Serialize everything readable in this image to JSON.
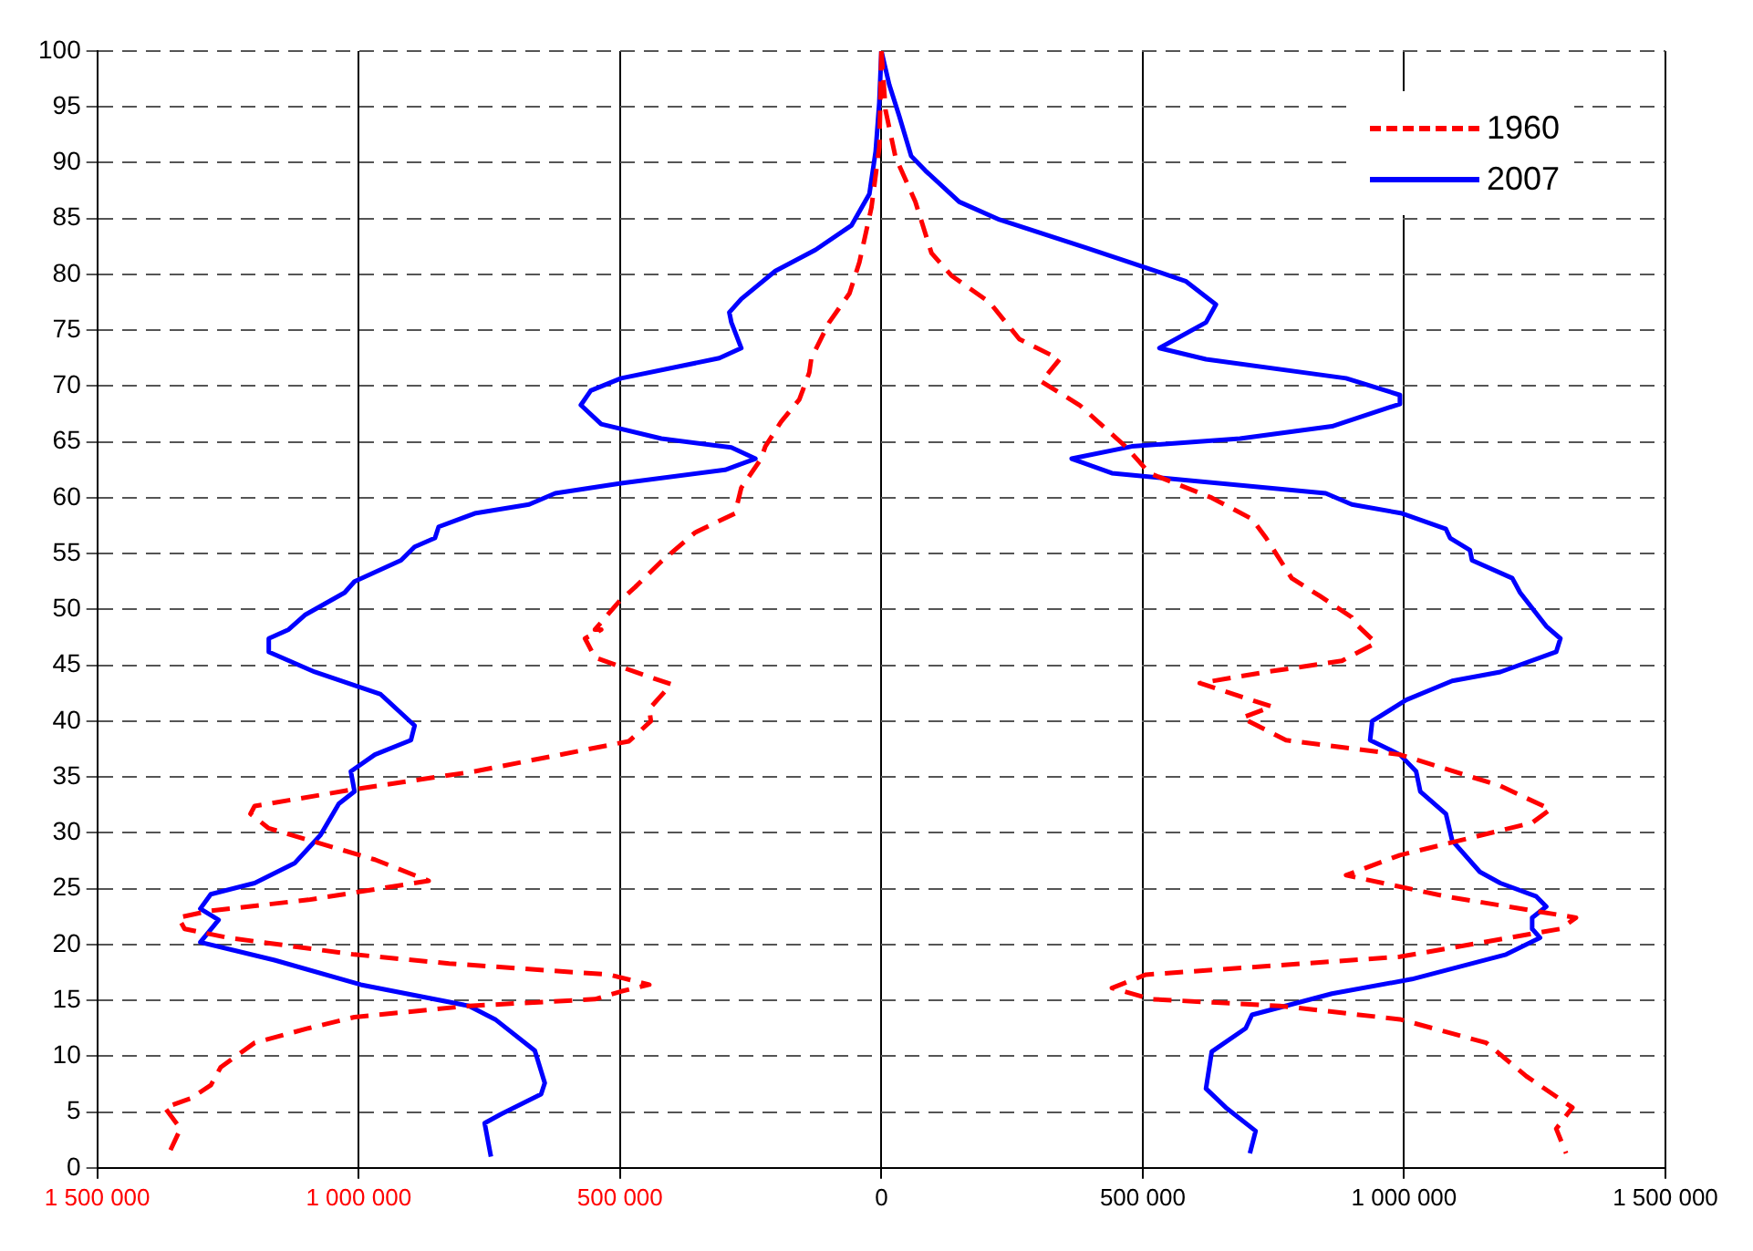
{
  "chart_data": {
    "type": "line",
    "xlim": [
      -1500000,
      1500000
    ],
    "xticks": [
      {
        "value": -1500000,
        "label": "1 500 000"
      },
      {
        "value": -1000000,
        "label": "1 000 000"
      },
      {
        "value": -500000,
        "label": "500 000"
      },
      0,
      {
        "value": 500000,
        "label": "500 000"
      },
      {
        "value": 1000000,
        "label": "1 000 000"
      },
      {
        "value": 1500000,
        "label": "1 500 000"
      }
    ],
    "ylim": [
      0,
      100
    ],
    "yticks": [
      0,
      5,
      10,
      15,
      20,
      25,
      30,
      35,
      40,
      45,
      50,
      55,
      60,
      65,
      70,
      75,
      80,
      85,
      90,
      95,
      100
    ],
    "grid": true,
    "legend": "top right",
    "marker": "none",
    "series": [
      {
        "name": "1960",
        "color": "#ff0000",
        "line_style": "dashed",
        "x": [
          -1360000,
          -1341000,
          -1371000,
          -1322000,
          -1283000,
          -1264000,
          -1199000,
          -1096000,
          -1008000,
          -789000,
          -548000,
          -498000,
          -444000,
          -521000,
          -827000,
          -1008000,
          -1249000,
          -1333000,
          -1345000,
          -1287000,
          -1096000,
          -866000,
          -969000,
          -1172000,
          -1207000,
          -1199000,
          -1008000,
          -778000,
          -483000,
          -441000,
          -444000,
          -402000,
          -471000,
          -548000,
          -567000,
          -536000,
          -548000,
          -502000,
          -471000,
          -421000,
          -356000,
          -280000,
          -268000,
          -230000,
          -222000,
          -192000,
          -157000,
          -138000,
          -134000,
          -100000,
          -61000,
          -42000,
          -19000,
          -4000,
          0,
          null,
          0,
          8000,
          27000,
          65000,
          96000,
          134000,
          207000,
          264000,
          341000,
          306000,
          379000,
          467000,
          513000,
          632000,
          709000,
          736000,
          785000,
          839000,
          900000,
          908000,
          946000,
          881000,
          736000,
          609000,
          747000,
          690000,
          774000,
          992000,
          1184000,
          1280000,
          1245000,
          992000,
          889000,
          1080000,
          1329000,
          1299000,
          992000,
          506000,
          441000,
          517000,
          762000,
          992000,
          1157000,
          1234000,
          1322000,
          1291000,
          1310000
        ],
        "values": [
          1.6,
          3.5,
          5.4,
          6.2,
          7.4,
          9,
          11.2,
          12.5,
          13.5,
          14.5,
          15.1,
          15.8,
          16.4,
          17.3,
          18.3,
          19.1,
          20.6,
          21.4,
          22.4,
          23,
          24,
          25.7,
          27.6,
          30.4,
          31.7,
          32.4,
          33.9,
          35.5,
          38.2,
          40,
          41.1,
          43.3,
          44.4,
          45.7,
          47.4,
          48.2,
          48.2,
          50.7,
          52,
          54.3,
          56.9,
          58.6,
          60.9,
          63.5,
          64.6,
          66.8,
          68.8,
          71.2,
          72.5,
          75.7,
          78.3,
          81.1,
          86,
          91.4,
          100,
          null,
          100,
          94.7,
          90.5,
          86.5,
          81.9,
          79.9,
          77.5,
          74.2,
          72.4,
          70.4,
          68.3,
          64.6,
          62.2,
          60,
          58.1,
          56.4,
          52.8,
          51.2,
          49.3,
          48.7,
          47,
          45.4,
          44.4,
          43.4,
          41.3,
          40.3,
          38.3,
          37,
          34.2,
          32.1,
          30.9,
          28,
          26.2,
          24.3,
          22.4,
          21.4,
          18.9,
          17.3,
          16.1,
          15.1,
          14.5,
          13.3,
          11.2,
          8.2,
          5.4,
          3.5,
          1.3
        ]
      },
      {
        "name": "2007",
        "color": "#0000ff",
        "line_style": "solid",
        "x": [
          -747000,
          -759000,
          -728000,
          -651000,
          -644000,
          -663000,
          -739000,
          -789000,
          -996000,
          -1161000,
          -1303000,
          -1268000,
          -1303000,
          -1283000,
          -1199000,
          -1122000,
          -1073000,
          -1038000,
          -1008000,
          -1015000,
          -969000,
          -900000,
          -893000,
          -958000,
          -1084000,
          -1172000,
          -1172000,
          -1134000,
          -1103000,
          -1027000,
          -1008000,
          -919000,
          -893000,
          -854000,
          -847000,
          -778000,
          -674000,
          -624000,
          -498000,
          -299000,
          -241000,
          -287000,
          -421000,
          -536000,
          -575000,
          -556000,
          -498000,
          -310000,
          -268000,
          -287000,
          -291000,
          -268000,
          -203000,
          -126000,
          -57000,
          -23000,
          -11000,
          -4000,
          0,
          null,
          0,
          15000,
          34000,
          57000,
          84000,
          149000,
          226000,
          391000,
          506000,
          582000,
          640000,
          621000,
          532000,
          621000,
          889000,
          992000,
          992000,
          862000,
          686000,
          479000,
          364000,
          441000,
          850000,
          900000,
          996000,
          1080000,
          1088000,
          1126000,
          1130000,
          1207000,
          1222000,
          1272000,
          1299000,
          1291000,
          1184000,
          1092000,
          1004000,
          939000,
          935000,
          992000,
          1023000,
          1031000,
          1080000,
          1092000,
          1145000,
          1184000,
          1253000,
          1272000,
          1245000,
          1245000,
          1260000,
          1195000,
          1015000,
          862000,
          709000,
          697000,
          632000,
          621000,
          659000,
          716000,
          705000
        ],
        "values": [
          1,
          4,
          4.8,
          6.6,
          7.6,
          10.5,
          13.3,
          14.5,
          16.4,
          18.6,
          20.2,
          22.2,
          23.2,
          24.5,
          25.5,
          27.3,
          29.8,
          32.6,
          33.7,
          35.5,
          37,
          38.3,
          39.6,
          42.4,
          44.4,
          46.2,
          47.4,
          48.2,
          49.5,
          51.5,
          52.5,
          54.4,
          55.6,
          56.4,
          57.4,
          58.6,
          59.4,
          60.4,
          61.3,
          62.5,
          63.5,
          64.5,
          65.3,
          66.6,
          68.3,
          69.6,
          70.7,
          72.5,
          73.4,
          75.7,
          76.6,
          77.8,
          80.3,
          82.2,
          84.4,
          87.2,
          91,
          95.4,
          100,
          null,
          100,
          97,
          94.2,
          90.6,
          89.3,
          86.5,
          84.9,
          82.4,
          80.6,
          79.4,
          77.3,
          75.7,
          73.4,
          72.4,
          70.7,
          69.2,
          68.4,
          66.4,
          65.3,
          64.6,
          63.5,
          62.2,
          60.4,
          59.4,
          58.6,
          57.2,
          56.4,
          55.3,
          54.4,
          52.8,
          51.5,
          48.5,
          47.4,
          46.2,
          44.4,
          43.6,
          41.9,
          40,
          38.3,
          37,
          35.5,
          33.7,
          31.7,
          29.3,
          26.5,
          25.5,
          24.3,
          23.4,
          22.4,
          21.4,
          20.6,
          19.1,
          16.9,
          15.6,
          13.7,
          12.5,
          10.4,
          7.1,
          5.4,
          3.3,
          1.3
        ]
      }
    ]
  }
}
